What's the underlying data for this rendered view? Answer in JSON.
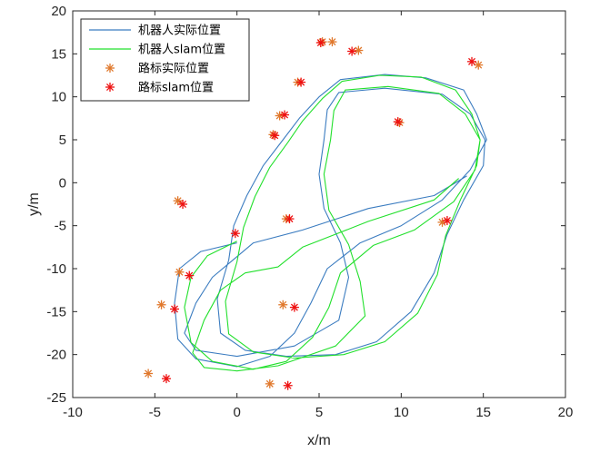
{
  "chart_data": {
    "type": "line",
    "xlabel": "x/m",
    "ylabel": "y/m",
    "xlim": [
      -10,
      20
    ],
    "ylim": [
      -25,
      20
    ],
    "xticks": [
      -10,
      -5,
      0,
      5,
      10,
      15,
      20
    ],
    "yticks": [
      -25,
      -20,
      -15,
      -10,
      -5,
      0,
      5,
      10,
      15,
      20
    ],
    "grid": false,
    "legend_position": "top-left",
    "colors": {
      "actual_path": "#3b7cc0",
      "slam_path": "#22e02c",
      "actual_landmark": "#e0782c",
      "slam_landmark": "#ee1111",
      "axis": "#262626"
    },
    "legend": [
      {
        "label": "机器人实际位置",
        "kind": "line",
        "color": "#3b7cc0"
      },
      {
        "label": "机器人slam位置",
        "kind": "line",
        "color": "#22e02c"
      },
      {
        "label": "路标实际位置",
        "kind": "star",
        "color": "#e0782c"
      },
      {
        "label": "路标slam位置",
        "kind": "star",
        "color": "#ee1111"
      }
    ],
    "series": [
      {
        "name": "机器人实际位置",
        "kind": "line",
        "color": "#3b7cc0",
        "points": [
          [
            0,
            -7
          ],
          [
            -2.2,
            -8
          ],
          [
            -3.5,
            -10
          ],
          [
            -3.8,
            -14
          ],
          [
            -3.6,
            -18.2
          ],
          [
            -2.5,
            -20.5
          ],
          [
            0,
            -21.4
          ],
          [
            2,
            -20.2
          ],
          [
            3.5,
            -17.5
          ],
          [
            4.5,
            -14
          ],
          [
            5.5,
            -10
          ],
          [
            7.5,
            -7
          ],
          [
            10,
            -5
          ],
          [
            12.5,
            -2
          ],
          [
            14.2,
            1.5
          ],
          [
            15.2,
            5
          ],
          [
            14.6,
            8
          ],
          [
            13.8,
            10.8
          ],
          [
            11.5,
            12.2
          ],
          [
            9,
            12.6
          ],
          [
            6.3,
            12
          ],
          [
            5,
            10
          ],
          [
            3.8,
            7.5
          ],
          [
            2.8,
            5
          ],
          [
            1.6,
            2
          ],
          [
            0.6,
            -1.5
          ],
          [
            -0.2,
            -5
          ],
          [
            -0.5,
            -9
          ],
          [
            -1.2,
            -13.5
          ],
          [
            -1,
            -17.5
          ],
          [
            0.5,
            -19.5
          ],
          [
            3,
            -20.2
          ],
          [
            6,
            -20
          ],
          [
            8.5,
            -18.5
          ],
          [
            10.6,
            -15
          ],
          [
            12,
            -10.5
          ],
          [
            12.8,
            -6
          ],
          [
            13.8,
            -2
          ],
          [
            15,
            2
          ],
          [
            15.1,
            5
          ],
          [
            14.2,
            8
          ],
          [
            12.5,
            10.3
          ],
          [
            9,
            11
          ],
          [
            6.2,
            10.5
          ],
          [
            5.5,
            8.5
          ],
          [
            5.3,
            5
          ],
          [
            5,
            1
          ],
          [
            5.3,
            -3
          ],
          [
            6.3,
            -7
          ],
          [
            6.8,
            -11
          ],
          [
            6.2,
            -16
          ],
          [
            3.5,
            -19
          ],
          [
            0,
            -20.2
          ],
          [
            -2.5,
            -19.5
          ],
          [
            -3.2,
            -17.5
          ],
          [
            -2.5,
            -14
          ],
          [
            -1.5,
            -11
          ],
          [
            1,
            -7
          ],
          [
            4,
            -5.5
          ],
          [
            8,
            -3
          ],
          [
            12,
            -1.5
          ],
          [
            14,
            0.8
          ]
        ]
      },
      {
        "name": "机器人slam位置",
        "kind": "line",
        "color": "#22e02c",
        "points": [
          [
            0,
            -6.8
          ],
          [
            -1.8,
            -8.5
          ],
          [
            -2.8,
            -11
          ],
          [
            -3.2,
            -14.5
          ],
          [
            -2.8,
            -18.6
          ],
          [
            -1.5,
            -20.8
          ],
          [
            1,
            -21.7
          ],
          [
            3,
            -20.8
          ],
          [
            4.6,
            -18
          ],
          [
            5.6,
            -14.5
          ],
          [
            6.3,
            -10.5
          ],
          [
            8.3,
            -7.3
          ],
          [
            10.8,
            -5.5
          ],
          [
            13.2,
            -2.2
          ],
          [
            14.5,
            1.5
          ],
          [
            14.8,
            5
          ],
          [
            14.3,
            8
          ],
          [
            13.3,
            10.8
          ],
          [
            11.2,
            12.3
          ],
          [
            8.7,
            12.5
          ],
          [
            6.4,
            11.8
          ],
          [
            5.2,
            9.8
          ],
          [
            4,
            7.2
          ],
          [
            3.1,
            4.7
          ],
          [
            2,
            1.8
          ],
          [
            1.1,
            -1.6
          ],
          [
            0.4,
            -5.2
          ],
          [
            0,
            -9.2
          ],
          [
            -0.7,
            -13.8
          ],
          [
            -0.5,
            -17.6
          ],
          [
            1,
            -19.7
          ],
          [
            3.5,
            -20.4
          ],
          [
            6.5,
            -20
          ],
          [
            9,
            -18.5
          ],
          [
            11,
            -15.2
          ],
          [
            12.2,
            -10.7
          ],
          [
            12.7,
            -6.2
          ],
          [
            13.6,
            -2
          ],
          [
            14.6,
            2
          ],
          [
            14.8,
            5
          ],
          [
            13.9,
            8
          ],
          [
            12.3,
            10.4
          ],
          [
            9.2,
            11.2
          ],
          [
            6.6,
            10.8
          ],
          [
            5.9,
            8.4
          ],
          [
            5.7,
            5
          ],
          [
            5.3,
            1
          ],
          [
            5.6,
            -3.2
          ],
          [
            6.8,
            -7.2
          ],
          [
            7.5,
            -11.5
          ],
          [
            7.8,
            -15.5
          ],
          [
            6,
            -19
          ],
          [
            2.5,
            -21.3
          ],
          [
            0,
            -21.9
          ],
          [
            -2,
            -21.5
          ],
          [
            -2.7,
            -19.8
          ],
          [
            -2,
            -16
          ],
          [
            -1,
            -12.5
          ],
          [
            0.5,
            -10.5
          ],
          [
            2.5,
            -9.8
          ],
          [
            4,
            -7.5
          ],
          [
            8,
            -4.5
          ],
          [
            12,
            -2
          ],
          [
            13.5,
            0.5
          ]
        ]
      },
      {
        "name": "路标实际位置",
        "kind": "marker",
        "color": "#e0782c",
        "points": [
          [
            5.2,
            16.4
          ],
          [
            5.8,
            16.4
          ],
          [
            7.4,
            15.4
          ],
          [
            3.7,
            11.7
          ],
          [
            2.6,
            7.8
          ],
          [
            2.2,
            5.6
          ],
          [
            9.9,
            7
          ],
          [
            14.7,
            13.7
          ],
          [
            -3.6,
            -2.1
          ],
          [
            3,
            -4.2
          ],
          [
            12.5,
            -4.6
          ],
          [
            -3.5,
            -10.4
          ],
          [
            -4.6,
            -14.2
          ],
          [
            2.8,
            -14.2
          ],
          [
            -5.4,
            -22.2
          ],
          [
            2,
            -23.4
          ]
        ]
      },
      {
        "name": "路标slam位置",
        "kind": "marker",
        "color": "#ee1111",
        "points": [
          [
            5.1,
            16.3
          ],
          [
            7,
            15.3
          ],
          [
            3.9,
            11.7
          ],
          [
            2.9,
            7.9
          ],
          [
            2.3,
            5.5
          ],
          [
            9.8,
            7.1
          ],
          [
            14.3,
            14.1
          ],
          [
            -3.3,
            -2.5
          ],
          [
            3.2,
            -4.2
          ],
          [
            12.8,
            -4.4
          ],
          [
            -0.1,
            -5.9
          ],
          [
            -2.9,
            -10.8
          ],
          [
            -3.8,
            -14.7
          ],
          [
            3.5,
            -14.5
          ],
          [
            -4.3,
            -22.8
          ],
          [
            3.1,
            -23.6
          ]
        ]
      }
    ]
  }
}
